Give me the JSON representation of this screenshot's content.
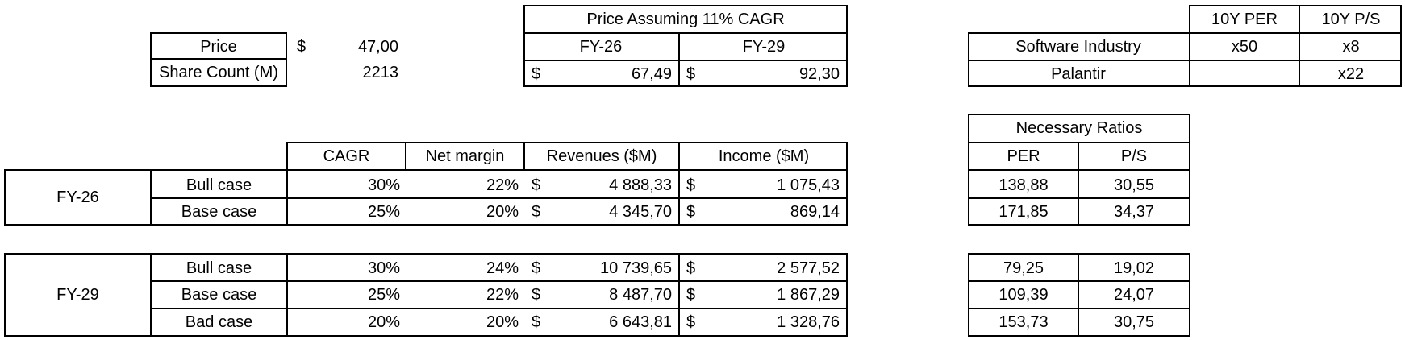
{
  "inputs": {
    "price_label": "Price",
    "price_currency": "$",
    "price_value": "47,00",
    "share_label": "Share Count (M)",
    "share_value": "2213"
  },
  "price_assumption": {
    "title": "Price Assuming 11% CAGR",
    "col1": "FY-26",
    "col2": "FY-29",
    "cur": "$",
    "val1": "67,49",
    "val2": "92,30"
  },
  "industry": {
    "col_per": "10Y PER",
    "col_ps": "10Y P/S",
    "rows": [
      {
        "name": "Software Industry",
        "per": "x50",
        "ps": "x8"
      },
      {
        "name": "Palantir",
        "per": "",
        "ps": "x22"
      }
    ]
  },
  "scenarios": {
    "headers": {
      "cagr": "CAGR",
      "margin": "Net margin",
      "revenues": "Revenues ($M)",
      "income": "Income ($M)"
    },
    "cur": "$",
    "fy26": {
      "label": "FY-26",
      "rows": [
        {
          "case": "Bull case",
          "cagr": "30%",
          "margin": "22%",
          "revenues": "4 888,33",
          "income": "1 075,43"
        },
        {
          "case": "Base case",
          "cagr": "25%",
          "margin": "20%",
          "revenues": "4 345,70",
          "income": "869,14"
        }
      ]
    },
    "fy29": {
      "label": "FY-29",
      "rows": [
        {
          "case": "Bull case",
          "cagr": "30%",
          "margin": "24%",
          "revenues": "10 739,65",
          "income": "2 577,52"
        },
        {
          "case": "Base case",
          "cagr": "25%",
          "margin": "22%",
          "revenues": "8 487,70",
          "income": "1 867,29"
        },
        {
          "case": "Bad case",
          "cagr": "20%",
          "margin": "20%",
          "revenues": "6 643,81",
          "income": "1 328,76"
        }
      ]
    }
  },
  "ratios": {
    "title": "Necessary Ratios",
    "col_per": "PER",
    "col_ps": "P/S",
    "fy26": [
      {
        "per": "138,88",
        "ps": "30,55"
      },
      {
        "per": "171,85",
        "ps": "34,37"
      }
    ],
    "fy29": [
      {
        "per": "79,25",
        "ps": "19,02"
      },
      {
        "per": "109,39",
        "ps": "24,07"
      },
      {
        "per": "153,73",
        "ps": "30,75"
      }
    ]
  }
}
